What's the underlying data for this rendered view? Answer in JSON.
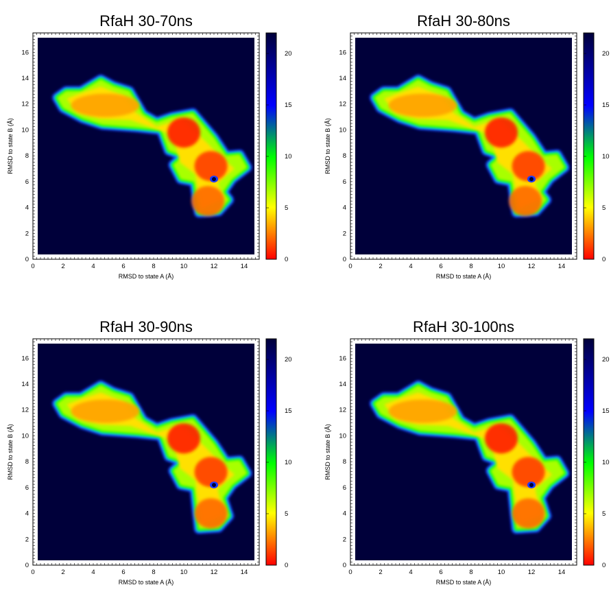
{
  "chart_data": [
    {
      "type": "heatmap",
      "title": "RfaH 30-70ns",
      "xlabel": "RMSD to state A (Å)",
      "ylabel": "RMSD to state B (Å)",
      "xlim": [
        0,
        15
      ],
      "ylim": [
        0,
        17.5
      ],
      "x_ticks": [
        0,
        2,
        4,
        6,
        8,
        10,
        12,
        14
      ],
      "y_ticks": [
        0,
        2,
        4,
        6,
        8,
        10,
        12,
        14,
        16
      ],
      "colorbar": {
        "range": [
          0,
          22
        ],
        "ticks": [
          0,
          5,
          10,
          15,
          20
        ],
        "colors": [
          "#ff0000",
          "#ffff00",
          "#00ff00",
          "#0000ff",
          "#00003a"
        ]
      },
      "background_value": 22,
      "minima": [
        {
          "x": 4.8,
          "y": 11.9,
          "value": 2.5
        },
        {
          "x": 10.0,
          "y": 9.8,
          "value": 0.5
        },
        {
          "x": 11.8,
          "y": 7.2,
          "value": 1.2
        },
        {
          "x": 11.6,
          "y": 4.5,
          "value": 2.0
        }
      ]
    },
    {
      "type": "heatmap",
      "title": "RfaH 30-80ns",
      "xlabel": "RMSD to state A (Å)",
      "ylabel": "RMSD to state B (Å)",
      "xlim": [
        0,
        15
      ],
      "ylim": [
        0,
        17.5
      ],
      "x_ticks": [
        0,
        2,
        4,
        6,
        8,
        10,
        12,
        14
      ],
      "y_ticks": [
        0,
        2,
        4,
        6,
        8,
        10,
        12,
        14,
        16
      ],
      "colorbar": {
        "range": [
          0,
          22
        ],
        "ticks": [
          0,
          5,
          10,
          15,
          20
        ],
        "colors": [
          "#ff0000",
          "#ffff00",
          "#00ff00",
          "#0000ff",
          "#00003a"
        ]
      },
      "background_value": 22,
      "minima": [
        {
          "x": 4.8,
          "y": 11.9,
          "value": 2.5
        },
        {
          "x": 10.0,
          "y": 9.8,
          "value": 0.5
        },
        {
          "x": 11.8,
          "y": 7.2,
          "value": 1.2
        },
        {
          "x": 11.6,
          "y": 4.5,
          "value": 2.0
        }
      ]
    },
    {
      "type": "heatmap",
      "title": "RfaH 30-90ns",
      "xlabel": "RMSD to state A (Å)",
      "ylabel": "RMSD to state B (Å)",
      "xlim": [
        0,
        15
      ],
      "ylim": [
        0,
        17.5
      ],
      "x_ticks": [
        0,
        2,
        4,
        6,
        8,
        10,
        12,
        14
      ],
      "y_ticks": [
        0,
        2,
        4,
        6,
        8,
        10,
        12,
        14,
        16
      ],
      "colorbar": {
        "range": [
          0,
          22
        ],
        "ticks": [
          0,
          5,
          10,
          15,
          20
        ],
        "colors": [
          "#ff0000",
          "#ffff00",
          "#00ff00",
          "#0000ff",
          "#00003a"
        ]
      },
      "background_value": 22,
      "minima": [
        {
          "x": 4.8,
          "y": 11.9,
          "value": 2.5
        },
        {
          "x": 10.0,
          "y": 9.8,
          "value": 0.5
        },
        {
          "x": 11.8,
          "y": 7.2,
          "value": 1.2
        },
        {
          "x": 11.8,
          "y": 4.0,
          "value": 2.0
        }
      ]
    },
    {
      "type": "heatmap",
      "title": "RfaH 30-100ns",
      "xlabel": "RMSD to state A (Å)",
      "ylabel": "RMSD to state B (Å)",
      "xlim": [
        0,
        15
      ],
      "ylim": [
        0,
        17.5
      ],
      "x_ticks": [
        0,
        2,
        4,
        6,
        8,
        10,
        12,
        14
      ],
      "y_ticks": [
        0,
        2,
        4,
        6,
        8,
        10,
        12,
        14,
        16
      ],
      "colorbar": {
        "range": [
          0,
          22
        ],
        "ticks": [
          0,
          5,
          10,
          15,
          20
        ],
        "colors": [
          "#ff0000",
          "#ffff00",
          "#00ff00",
          "#0000ff",
          "#00003a"
        ]
      },
      "background_value": 22,
      "minima": [
        {
          "x": 4.8,
          "y": 11.9,
          "value": 2.5
        },
        {
          "x": 10.0,
          "y": 9.8,
          "value": 0.5
        },
        {
          "x": 11.8,
          "y": 7.2,
          "value": 1.2
        },
        {
          "x": 11.8,
          "y": 4.0,
          "value": 2.0
        }
      ]
    }
  ]
}
